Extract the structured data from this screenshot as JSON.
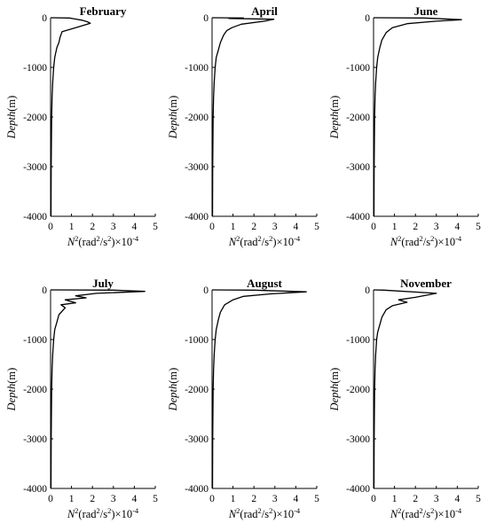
{
  "chart_data": [
    {
      "type": "line",
      "title": "February",
      "xlabel_parts": [
        "N",
        "2",
        "(rad",
        "2",
        "/s",
        "2",
        ")×10",
        "-4"
      ],
      "ylabel_parts": [
        "Depth",
        "(m)"
      ],
      "xlim": [
        0,
        5
      ],
      "ylim": [
        -4000,
        0
      ],
      "xticks": [
        0,
        1,
        2,
        3,
        4,
        5
      ],
      "yticks": [
        0,
        -1000,
        -2000,
        -3000,
        -4000
      ],
      "series": [
        {
          "x": [
            0.0,
            0.9,
            1.1,
            1.5,
            1.75,
            1.9,
            1.6,
            1.2,
            0.55,
            0.45,
            0.4,
            0.3,
            0.2,
            0.15,
            0.1,
            0.07,
            0.05,
            0.03,
            0.02
          ],
          "y": [
            0,
            -5,
            -20,
            -50,
            -80,
            -110,
            -150,
            -200,
            -280,
            -400,
            -500,
            -600,
            -800,
            -1000,
            -1300,
            -1600,
            -2000,
            -3000,
            -4000
          ]
        }
      ]
    },
    {
      "type": "line",
      "title": "April",
      "xlabel_parts": [
        "N",
        "2",
        "(rad",
        "2",
        "/s",
        "2",
        ")×10",
        "-4"
      ],
      "ylabel_parts": [
        "Depth",
        "(m)"
      ],
      "xlim": [
        0,
        5
      ],
      "ylim": [
        -4000,
        0
      ],
      "xticks": [
        0,
        1,
        2,
        3,
        4,
        5
      ],
      "yticks": [
        0,
        -1000,
        -2000,
        -3000,
        -4000
      ],
      "series": [
        {
          "x": [
            0.0,
            1.5,
            0.8,
            2.95,
            2.5,
            1.4,
            0.95,
            0.7,
            0.55,
            0.4,
            0.3,
            0.2,
            0.15,
            0.1,
            0.07,
            0.05,
            0.03,
            0.02
          ],
          "y": [
            0,
            -5,
            -15,
            -30,
            -70,
            -130,
            -200,
            -260,
            -350,
            -500,
            -650,
            -800,
            -1000,
            -1300,
            -1600,
            -2000,
            -3000,
            -4000
          ]
        }
      ]
    },
    {
      "type": "line",
      "title": "June",
      "xlabel_parts": [
        "N",
        "2",
        "(rad",
        "2",
        "/s",
        "2",
        ")×10",
        "-4"
      ],
      "ylabel_parts": [
        "Depth",
        "(m)"
      ],
      "xlim": [
        0,
        5
      ],
      "ylim": [
        -4000,
        0
      ],
      "xticks": [
        0,
        1,
        2,
        3,
        4,
        5
      ],
      "yticks": [
        0,
        -1000,
        -2000,
        -3000,
        -4000
      ],
      "series": [
        {
          "x": [
            0.0,
            2.4,
            4.2,
            3.0,
            1.6,
            0.9,
            0.6,
            0.4,
            0.3,
            0.2,
            0.15,
            0.1,
            0.07,
            0.05,
            0.03,
            0.02
          ],
          "y": [
            0,
            -5,
            -40,
            -70,
            -120,
            -200,
            -300,
            -450,
            -600,
            -800,
            -1000,
            -1300,
            -1600,
            -2000,
            -3000,
            -4000
          ]
        }
      ]
    },
    {
      "type": "line",
      "title": "July",
      "xlabel_parts": [
        "N",
        "2",
        "(rad",
        "2",
        "/s",
        "2",
        ")×10",
        "-4"
      ],
      "ylabel_parts": [
        "Depth",
        "(m)"
      ],
      "xlim": [
        0,
        5
      ],
      "ylim": [
        -4000,
        0
      ],
      "xticks": [
        0,
        1,
        2,
        3,
        4,
        5
      ],
      "yticks": [
        0,
        -1000,
        -2000,
        -3000,
        -4000
      ],
      "series": [
        {
          "x": [
            0.0,
            3.0,
            4.5,
            2.2,
            1.2,
            1.7,
            0.7,
            1.2,
            0.5,
            0.7,
            0.4,
            0.3,
            0.2,
            0.15,
            0.1,
            0.07,
            0.05,
            0.03,
            0.02
          ],
          "y": [
            0,
            -5,
            -30,
            -70,
            -120,
            -160,
            -200,
            -260,
            -300,
            -360,
            -500,
            -650,
            -800,
            -1000,
            -1300,
            -1600,
            -2000,
            -3000,
            -4000
          ]
        }
      ]
    },
    {
      "type": "line",
      "title": "August",
      "xlabel_parts": [
        "N",
        "2",
        "(rad",
        "2",
        "/s",
        "2",
        ")×10",
        "-4"
      ],
      "ylabel_parts": [
        "Depth",
        "(m)"
      ],
      "xlim": [
        0,
        5
      ],
      "ylim": [
        -4000,
        0
      ],
      "xticks": [
        0,
        1,
        2,
        3,
        4,
        5
      ],
      "yticks": [
        0,
        -1000,
        -2000,
        -3000,
        -4000
      ],
      "series": [
        {
          "x": [
            0.0,
            2.0,
            4.5,
            2.8,
            1.5,
            1.0,
            0.6,
            0.4,
            0.3,
            0.2,
            0.15,
            0.1,
            0.07,
            0.05,
            0.03,
            0.02
          ],
          "y": [
            0,
            -5,
            -40,
            -80,
            -130,
            -200,
            -300,
            -450,
            -600,
            -800,
            -1000,
            -1300,
            -1600,
            -2000,
            -3000,
            -4000
          ]
        }
      ]
    },
    {
      "type": "line",
      "title": "November",
      "xlabel_parts": [
        "N",
        "2",
        "(rad",
        "2",
        "/s",
        "2",
        ")×10",
        "-4"
      ],
      "ylabel_parts": [
        "Depth",
        "(m)"
      ],
      "xlim": [
        0,
        5
      ],
      "ylim": [
        -4000,
        0
      ],
      "xticks": [
        0,
        1,
        2,
        3,
        4,
        5
      ],
      "yticks": [
        0,
        -1000,
        -2000,
        -3000,
        -4000
      ],
      "series": [
        {
          "x": [
            0.0,
            0.5,
            3.0,
            2.0,
            1.2,
            1.6,
            0.9,
            0.6,
            0.4,
            0.3,
            0.2,
            0.15,
            0.1,
            0.07,
            0.05,
            0.03,
            0.02
          ],
          "y": [
            0,
            -5,
            -70,
            -150,
            -200,
            -250,
            -320,
            -400,
            -550,
            -700,
            -850,
            -1000,
            -1300,
            -1600,
            -2000,
            -3000,
            -4000
          ]
        }
      ]
    }
  ]
}
